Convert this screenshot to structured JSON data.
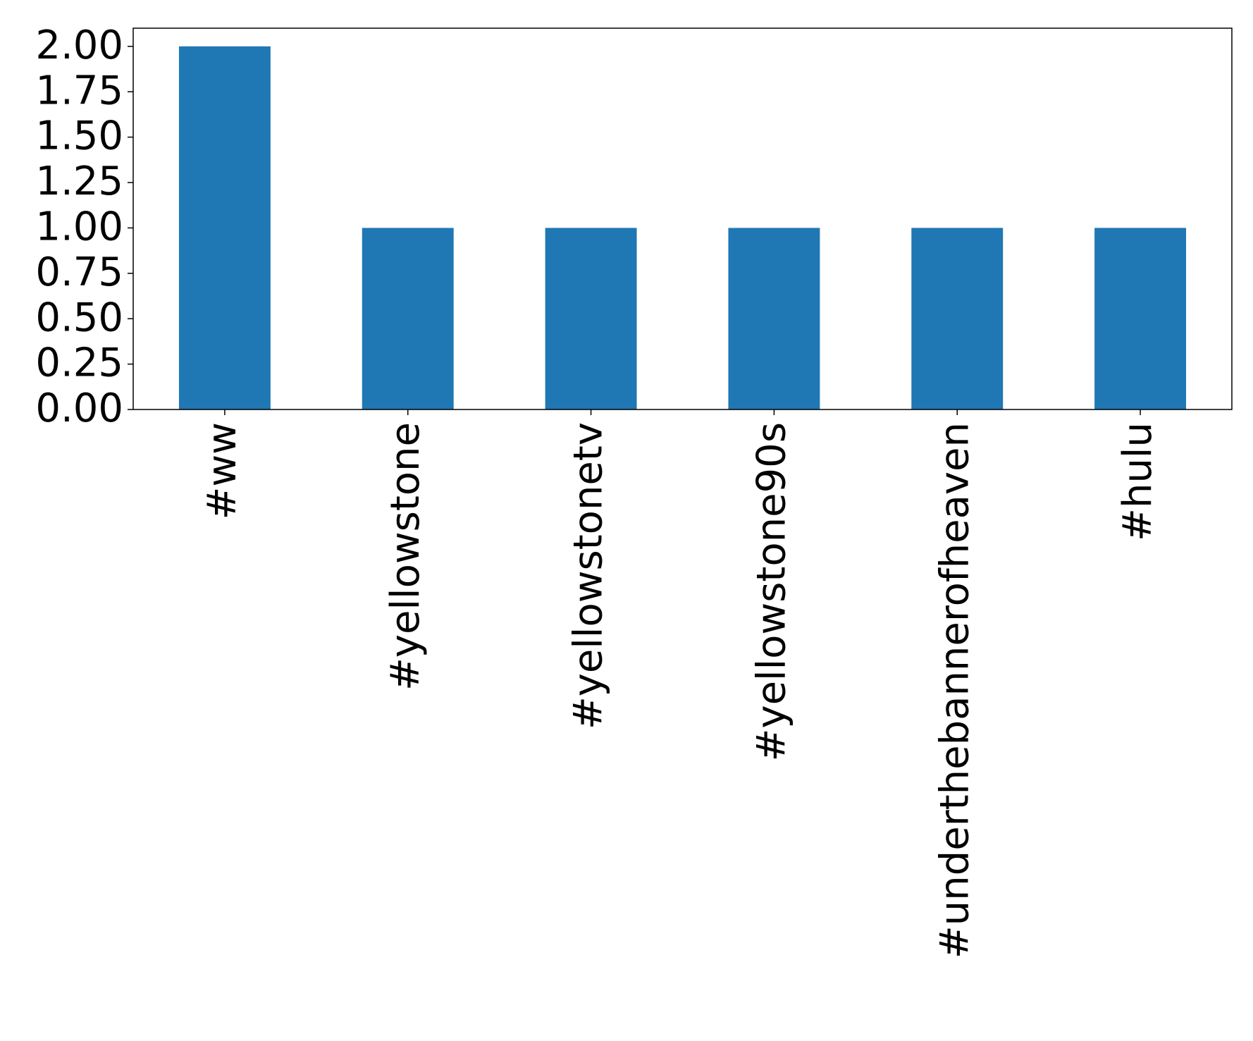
{
  "chart_data": {
    "type": "bar",
    "categories": [
      "#ww",
      "#yellowstone",
      "#yellowstonetv",
      "#yellowstone90s",
      "#underthebannerofheaven",
      "#hulu"
    ],
    "values": [
      2,
      1,
      1,
      1,
      1,
      1
    ],
    "color": "#1f77b4",
    "ylim": [
      0,
      2.1
    ],
    "yticks": [
      {
        "value": 0,
        "label": "0.00"
      },
      {
        "value": 0.25,
        "label": "0.25"
      },
      {
        "value": 0.5,
        "label": "0.50"
      },
      {
        "value": 0.75,
        "label": "0.75"
      },
      {
        "value": 1,
        "label": "1.00"
      },
      {
        "value": 1.25,
        "label": "1.25"
      },
      {
        "value": 1.5,
        "label": "1.50"
      },
      {
        "value": 1.75,
        "label": "1.75"
      },
      {
        "value": 2,
        "label": "2.00"
      }
    ],
    "grid": false
  }
}
